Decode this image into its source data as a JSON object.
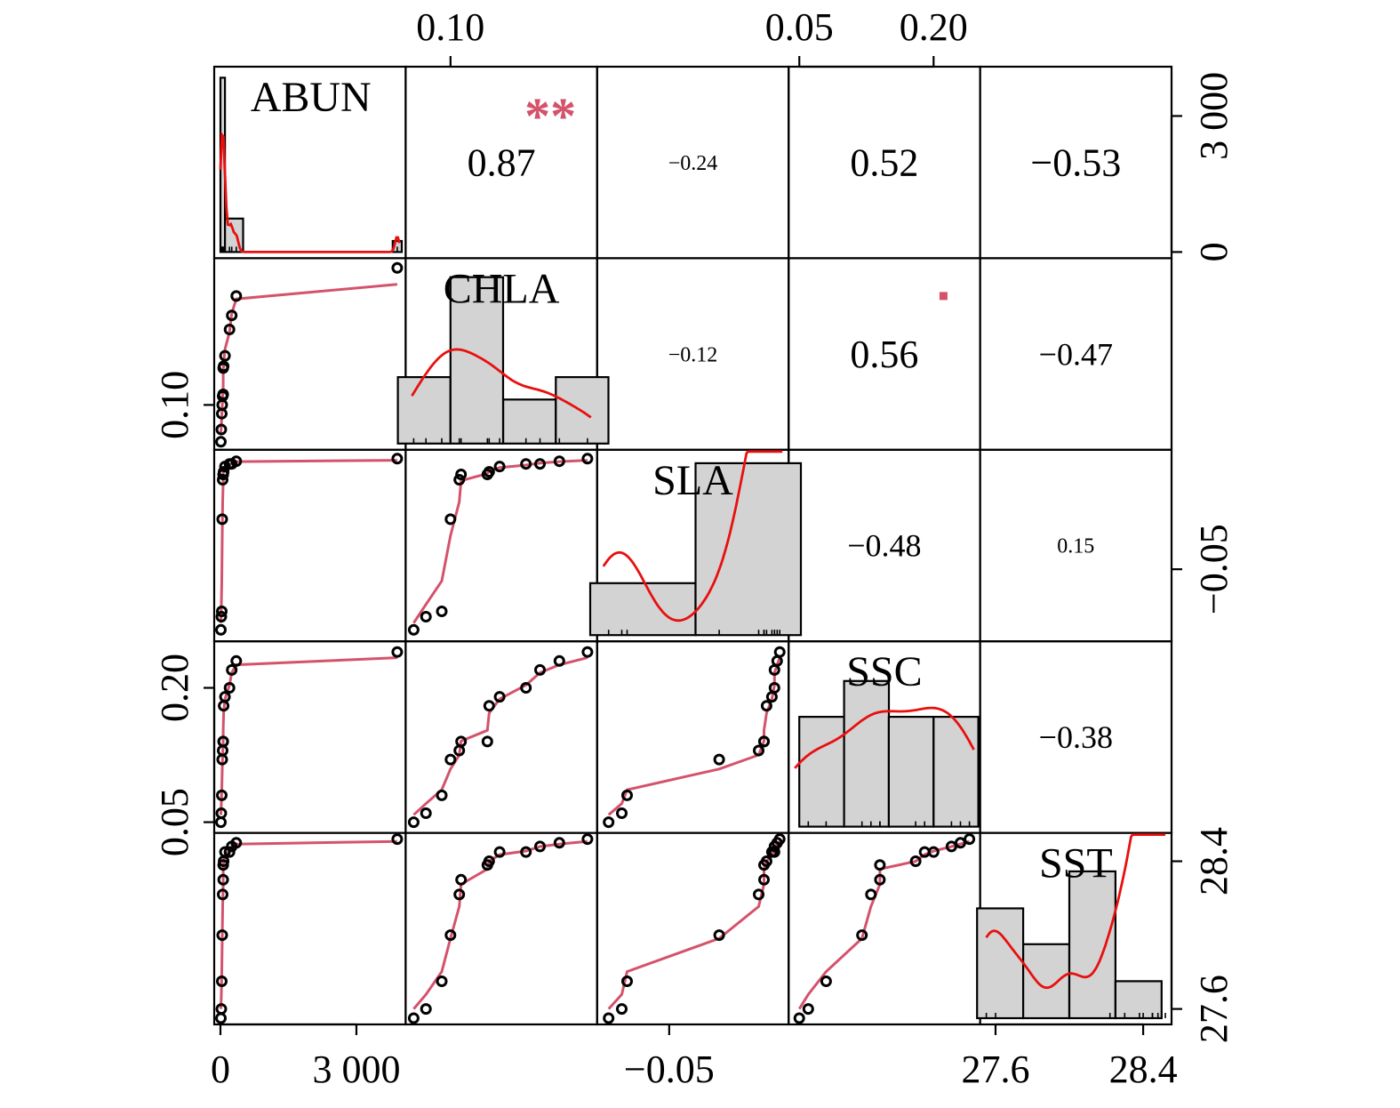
{
  "chart_data": {
    "type": "scatter",
    "variables": [
      "ABUN",
      "CHLA",
      "SLA",
      "SSC",
      "SST"
    ],
    "observations": {
      "ABUN": [
        10,
        20,
        30,
        40,
        50,
        60,
        60,
        70,
        100,
        200,
        250,
        350,
        3900
      ],
      "CHLA": [
        0.079,
        0.086,
        0.095,
        0.1,
        0.105,
        0.106,
        0.121,
        0.122,
        0.128,
        0.143,
        0.151,
        0.162,
        0.178
      ],
      "SLA": [
        -0.073,
        -0.068,
        -0.066,
        -0.031,
        -0.016,
        -0.014,
        -0.014,
        -0.013,
        -0.011,
        -0.01,
        -0.01,
        -0.009,
        -0.008
      ],
      "SSC": [
        0.05,
        0.06,
        0.08,
        0.12,
        0.13,
        0.14,
        0.14,
        0.18,
        0.19,
        0.2,
        0.22,
        0.23,
        0.24
      ],
      "SST": [
        27.55,
        27.6,
        27.75,
        28.0,
        28.22,
        28.3,
        28.38,
        28.4,
        28.45,
        28.45,
        28.48,
        28.5,
        28.52
      ]
    },
    "correlations": [
      {
        "row": "ABUN",
        "col": "CHLA",
        "value": "0.87",
        "stars": "**"
      },
      {
        "row": "ABUN",
        "col": "SLA",
        "value": "−0.24",
        "stars": ""
      },
      {
        "row": "ABUN",
        "col": "SSC",
        "value": "0.52",
        "stars": ""
      },
      {
        "row": "ABUN",
        "col": "SST",
        "value": "−0.53",
        "stars": ""
      },
      {
        "row": "CHLA",
        "col": "SLA",
        "value": "−0.12",
        "stars": ""
      },
      {
        "row": "CHLA",
        "col": "SSC",
        "value": "0.56",
        "stars": "."
      },
      {
        "row": "CHLA",
        "col": "SST",
        "value": "−0.47",
        "stars": ""
      },
      {
        "row": "SLA",
        "col": "SSC",
        "value": "−0.48",
        "stars": ""
      },
      {
        "row": "SLA",
        "col": "SST",
        "value": "0.15",
        "stars": ""
      },
      {
        "row": "SSC",
        "col": "SST",
        "value": "−0.38",
        "stars": ""
      }
    ],
    "histograms": {
      "ABUN": [
        {
          "from": 0,
          "to": 100,
          "density": 0.0073
        },
        {
          "from": 100,
          "to": 500,
          "density": 0.0014
        },
        {
          "from": 3800,
          "to": 4000,
          "density": 0.00046
        }
      ],
      "CHLA": [
        {
          "from": 0.07,
          "to": 0.1,
          "density": 8.9
        },
        {
          "from": 0.1,
          "to": 0.13,
          "density": 22.3
        },
        {
          "from": 0.13,
          "to": 0.16,
          "density": 5.9
        },
        {
          "from": 0.16,
          "to": 0.19,
          "density": 8.9
        }
      ],
      "SLA": [
        {
          "from": -0.08,
          "to": -0.04,
          "density": 5.8
        },
        {
          "from": -0.04,
          "to": 0.0,
          "density": 19.2
        }
      ],
      "SSC": [
        {
          "from": 0.05,
          "to": 0.1,
          "density": 4.6
        },
        {
          "from": 0.1,
          "to": 0.15,
          "density": 6.1
        },
        {
          "from": 0.15,
          "to": 0.2,
          "density": 4.6
        },
        {
          "from": 0.2,
          "to": 0.25,
          "density": 4.6
        }
      ],
      "SST": [
        {
          "from": 27.5,
          "to": 27.75,
          "density": 0.92
        },
        {
          "from": 27.75,
          "to": 28.0,
          "density": 0.62
        },
        {
          "from": 28.0,
          "to": 28.25,
          "density": 1.23
        },
        {
          "from": 28.25,
          "to": 28.5,
          "density": 0.31
        }
      ]
    },
    "axes": {
      "bottom": {
        "ABUN": {
          "ticks": [
            0,
            3000
          ],
          "labels": [
            "0",
            "3 000"
          ]
        },
        "SLA": {
          "ticks": [
            -0.05
          ],
          "labels": [
            "−0.05"
          ]
        },
        "SST": {
          "ticks": [
            27.6,
            28.4
          ],
          "labels": [
            "27.6",
            "28.4"
          ]
        }
      },
      "top": {
        "CHLA": {
          "ticks": [
            0.1
          ],
          "labels": [
            "0.10"
          ]
        },
        "SSC": {
          "ticks": [
            0.05,
            0.2
          ],
          "labels": [
            "0.05",
            "0.20"
          ]
        }
      },
      "left": {
        "CHLA": {
          "ticks": [
            0.1
          ],
          "labels": [
            "0.10"
          ]
        },
        "SSC": {
          "ticks": [
            0.05,
            0.2
          ],
          "labels": [
            "0.05",
            "0.20"
          ]
        }
      },
      "right": {
        "ABUN": {
          "ticks": [
            0,
            3000
          ],
          "labels": [
            "0",
            "3 000"
          ]
        },
        "SLA": {
          "ticks": [
            -0.05
          ],
          "labels": [
            "−0.05"
          ]
        },
        "SST": {
          "ticks": [
            27.6,
            28.4
          ],
          "labels": [
            "27.6",
            "28.4"
          ]
        }
      }
    },
    "colors": {
      "smooth_line": "#d4536b",
      "density_curve": "#e8100f",
      "histogram_fill": "#d3d3d3",
      "stars": "#d4536b"
    },
    "grid": false,
    "legend": "none"
  }
}
